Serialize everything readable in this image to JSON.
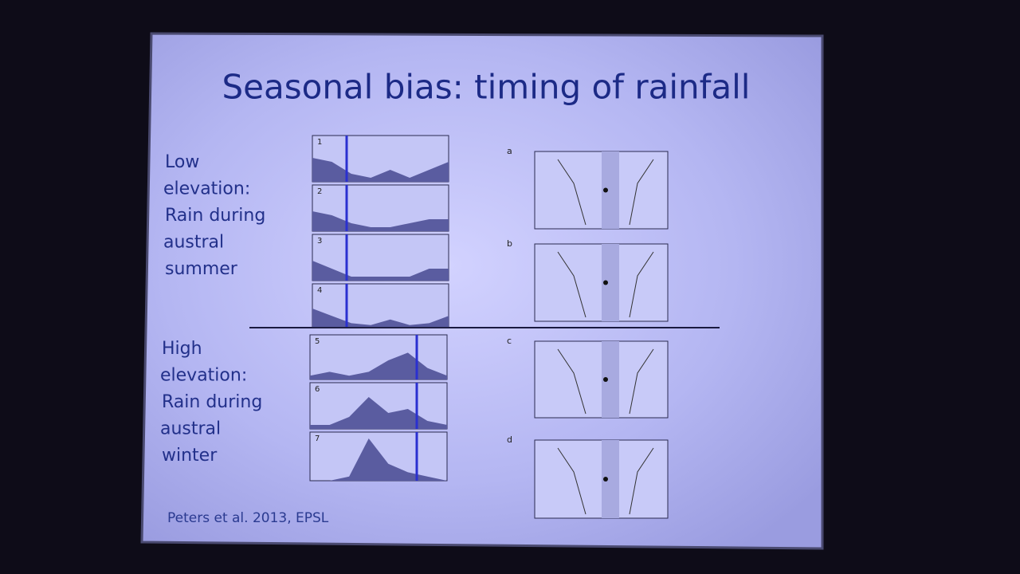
{
  "slide": {
    "title": "Seasonal bias: timing of rainfall",
    "groups": [
      {
        "lines": [
          "Low",
          "elevation:",
          "Rain during",
          "austral",
          "summer"
        ]
      },
      {
        "lines": [
          "High",
          "elevation:",
          "Rain during",
          "austral",
          "winter"
        ]
      }
    ],
    "citation": "Peters et al. 2013, EPSL",
    "left_panels": [
      "1",
      "2",
      "3",
      "4",
      "5",
      "6",
      "7"
    ],
    "right_panels": [
      "a",
      "b",
      "c",
      "d"
    ]
  }
}
